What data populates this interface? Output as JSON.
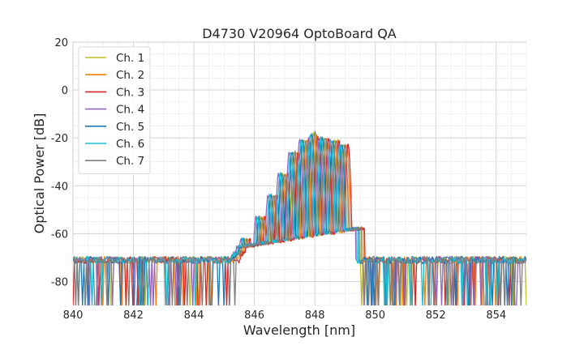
{
  "chart_data": {
    "type": "line",
    "title": "D4730 V20964 OptoBoard QA",
    "xlabel": "Wavelength [nm]",
    "ylabel": "Optical Power [dB]",
    "xlim": [
      840,
      855
    ],
    "ylim": [
      -90,
      20
    ],
    "xticks": [
      840,
      842,
      844,
      846,
      848,
      850,
      852,
      854
    ],
    "yticks": [
      -80,
      -60,
      -40,
      -20,
      0,
      20
    ],
    "grid": true,
    "legend_position": "top-left",
    "noise_floor_db": -71,
    "series": [
      {
        "name": "Ch. 1",
        "color": "#bcbd22",
        "peak_wavelength_nm": 847.95,
        "peak_power_db": -18
      },
      {
        "name": "Ch. 2",
        "color": "#ff7f0e",
        "peak_wavelength_nm": 848.05,
        "peak_power_db": -19
      },
      {
        "name": "Ch. 3",
        "color": "#d62728",
        "peak_wavelength_nm": 848.1,
        "peak_power_db": -19.5
      },
      {
        "name": "Ch. 4",
        "color": "#9467bd",
        "peak_wavelength_nm": 847.8,
        "peak_power_db": -20
      },
      {
        "name": "Ch. 5",
        "color": "#1f77b4",
        "peak_wavelength_nm": 847.9,
        "peak_power_db": -18.5
      },
      {
        "name": "Ch. 6",
        "color": "#17becf",
        "peak_wavelength_nm": 847.85,
        "peak_power_db": -19
      },
      {
        "name": "Ch. 7",
        "color": "#7f7f7f",
        "peak_wavelength_nm": 848.0,
        "peak_power_db": -17.5
      }
    ]
  }
}
